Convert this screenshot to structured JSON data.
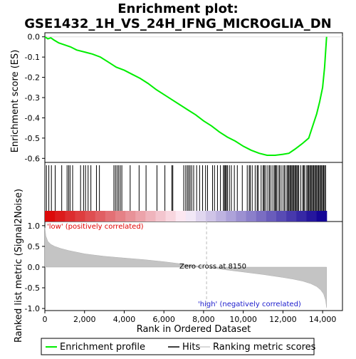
{
  "chart_data": {
    "type": "line",
    "title_line1": "Enrichment plot:",
    "title_line2": "GSE1432_1H_VS_24H_IFNG_MICROGLIA_DN",
    "xlabel": "Rank in Ordered Dataset",
    "xlim": [
      0,
      15000
    ],
    "xticks": [
      0,
      2000,
      4000,
      6000,
      8000,
      10000,
      12000,
      14000
    ],
    "xtick_labels": [
      "0",
      "2,000",
      "4,000",
      "6,000",
      "8,000",
      "10,000",
      "12,000",
      "14,000"
    ],
    "n_genes": 14200,
    "es_panel": {
      "ylabel": "Enrichment score (ES)",
      "ylim": [
        -0.62,
        0.02
      ],
      "yticks": [
        0.0,
        -0.1,
        -0.2,
        -0.3,
        -0.4,
        -0.5,
        -0.6
      ],
      "ytick_labels": [
        "0.0",
        "-0.1",
        "-0.2",
        "-0.3",
        "-0.4",
        "-0.5",
        "-0.6"
      ],
      "series_name": "Enrichment profile",
      "color": "#00ee00",
      "x": [
        0,
        150,
        300,
        450,
        700,
        1000,
        1300,
        1600,
        2000,
        2400,
        2800,
        3200,
        3600,
        4000,
        4400,
        4800,
        5200,
        5600,
        6000,
        6400,
        6800,
        7200,
        7600,
        8000,
        8400,
        8800,
        9200,
        9600,
        10000,
        10400,
        10800,
        11200,
        11600,
        12000,
        12300,
        12600,
        12800,
        13000,
        13300,
        13500,
        13700,
        13850,
        14000,
        14100,
        14200
      ],
      "y": [
        0.0,
        -0.01,
        -0.005,
        -0.015,
        -0.03,
        -0.04,
        -0.05,
        -0.065,
        -0.075,
        -0.085,
        -0.1,
        -0.125,
        -0.15,
        -0.165,
        -0.185,
        -0.205,
        -0.23,
        -0.26,
        -0.285,
        -0.31,
        -0.335,
        -0.36,
        -0.385,
        -0.415,
        -0.44,
        -0.47,
        -0.495,
        -0.515,
        -0.54,
        -0.56,
        -0.575,
        -0.585,
        -0.585,
        -0.58,
        -0.575,
        -0.555,
        -0.54,
        -0.525,
        -0.5,
        -0.44,
        -0.38,
        -0.32,
        -0.25,
        -0.15,
        0.0
      ]
    },
    "hits": [
      80,
      200,
      330,
      520,
      850,
      1120,
      1200,
      1270,
      1400,
      1800,
      1950,
      2050,
      2180,
      2320,
      2600,
      2750,
      3480,
      3560,
      3640,
      3720,
      3800,
      3880,
      4300,
      4750,
      5100,
      5650,
      6050,
      6400,
      6450,
      7000,
      7100,
      7180,
      7250,
      7320,
      7400,
      7500,
      7650,
      7800,
      7950,
      8100,
      8200,
      8450,
      8550,
      8700,
      8850,
      9000,
      9050,
      9100,
      9150,
      9200,
      9300,
      9400,
      9550,
      9700,
      9950,
      10200,
      10300,
      10350,
      10450,
      10600,
      10700,
      10750,
      10900,
      11000,
      11050,
      11100,
      11200,
      11300,
      11350,
      11450,
      11550,
      11600,
      11650,
      11700,
      11800,
      11850,
      11950,
      12050,
      12100,
      12200,
      12250,
      12300,
      12350,
      12400,
      12450,
      12500,
      12550,
      12600,
      12650,
      12700,
      12750,
      12800,
      12900,
      13000,
      13050,
      13100,
      13200,
      13250,
      13300,
      13350,
      13400,
      13450,
      13500,
      13550,
      13600,
      13650,
      13700,
      13750,
      13800,
      13850,
      13900,
      13950,
      14000,
      14050,
      14100,
      14150
    ],
    "metric_panel": {
      "ylabel": "Ranked list metric (Signal2Noise)",
      "ylim": [
        -1.05,
        1.1
      ],
      "yticks": [
        1.0,
        0.5,
        0.0,
        -0.5,
        -1.0
      ],
      "ytick_labels": [
        "1.0",
        "0.5",
        "0.0",
        "-0.5",
        "-1.0"
      ],
      "series_name": "Ranking metric scores",
      "x": [
        0,
        50,
        150,
        300,
        500,
        800,
        1200,
        1600,
        2000,
        2500,
        3000,
        3500,
        4000,
        5000,
        6000,
        7000,
        8150,
        9000,
        10000,
        11000,
        12000,
        12500,
        13000,
        13400,
        13700,
        13900,
        14050,
        14150,
        14200
      ],
      "y": [
        0.95,
        0.75,
        0.62,
        0.55,
        0.5,
        0.45,
        0.4,
        0.36,
        0.32,
        0.29,
        0.26,
        0.24,
        0.22,
        0.18,
        0.13,
        0.07,
        0.0,
        -0.06,
        -0.12,
        -0.18,
        -0.25,
        -0.29,
        -0.34,
        -0.4,
        -0.47,
        -0.55,
        -0.65,
        -0.8,
        -0.98
      ],
      "zero_cross_label": "Zero cross at 8150",
      "zero_cross": 8150,
      "low_label": "'low' (positively correlated)",
      "high_label": "'high' (negatively correlated)"
    },
    "legend": {
      "placement": "bottom",
      "items": [
        "Enrichment profile",
        "Hits",
        "Ranking metric scores"
      ]
    }
  }
}
